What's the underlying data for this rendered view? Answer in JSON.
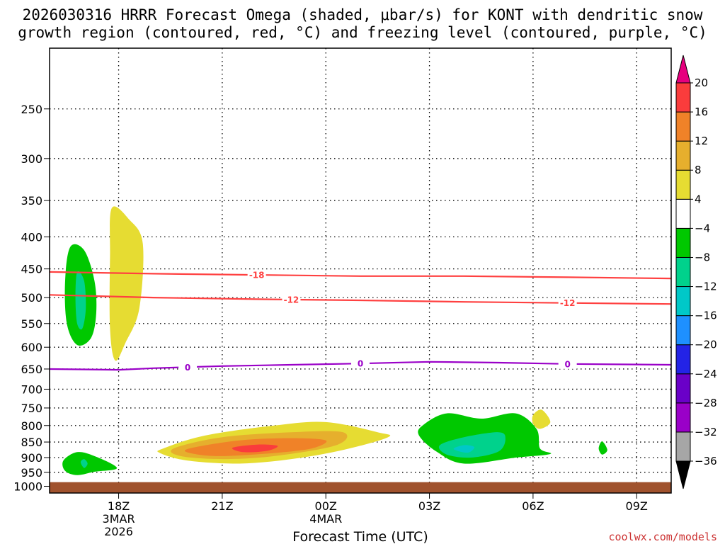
{
  "chart_data": {
    "type": "heatmap",
    "title_line1": "2026030316 HRRR Forecast Omega (shaded, μbar/s) for KONT with dendritic snow",
    "title_line2": "growth region (contoured, red, °C) and freezing level (contoured, purple, °C)",
    "xlabel": "Forecast Time (UTC)",
    "ylabel": "",
    "credit": "coolwx.com/models",
    "credit_color": "#cc3333",
    "x_ticks": [
      {
        "hours": 2,
        "lines": [
          "18Z",
          "3MAR",
          "2026"
        ]
      },
      {
        "hours": 5,
        "lines": [
          "21Z"
        ]
      },
      {
        "hours": 8,
        "lines": [
          "00Z",
          "4MAR"
        ]
      },
      {
        "hours": 11,
        "lines": [
          "03Z"
        ]
      },
      {
        "hours": 14,
        "lines": [
          "06Z"
        ]
      },
      {
        "hours": 17,
        "lines": [
          "09Z"
        ]
      }
    ],
    "x_range_hours": [
      0,
      18
    ],
    "y_ticks_hPa": [
      250,
      300,
      350,
      400,
      450,
      500,
      550,
      600,
      650,
      700,
      750,
      800,
      850,
      900,
      950,
      1000
    ],
    "y_range_hPa": [
      200,
      1025
    ],
    "y_scale": "log-pressure",
    "ground_hPa": 985,
    "ground_color": "#a0522d",
    "grid": "dotted",
    "colorbar": {
      "levels": [
        -36,
        -32,
        -28,
        -24,
        -20,
        -16,
        -12,
        -8,
        -4,
        4,
        8,
        12,
        16,
        20
      ],
      "colors": [
        "#a6a6a6",
        "#9a00c8",
        "#6a00c8",
        "#2323e6",
        "#1e90ff",
        "#00c8c8",
        "#00d28c",
        "#00c800",
        "#ffffff",
        "#e6dc32",
        "#e6af2d",
        "#f08228",
        "#fa3c3c",
        "#f00082"
      ],
      "under_color": "#000000",
      "over_color": "#e6007e"
    },
    "omega_regions": [
      {
        "level": -8,
        "color": "#00c800",
        "points": [
          [
            0.6,
            415
          ],
          [
            1.0,
            420
          ],
          [
            1.3,
            470
          ],
          [
            1.35,
            530
          ],
          [
            1.2,
            580
          ],
          [
            0.8,
            595
          ],
          [
            0.5,
            550
          ],
          [
            0.45,
            470
          ]
        ]
      },
      {
        "level": -12,
        "color": "#00d28c",
        "points": [
          [
            0.8,
            455
          ],
          [
            1.0,
            470
          ],
          [
            1.05,
            520
          ],
          [
            0.95,
            560
          ],
          [
            0.8,
            550
          ],
          [
            0.75,
            500
          ]
        ]
      },
      {
        "level": 4,
        "color": "#e6dc32",
        "points": [
          [
            1.8,
            360
          ],
          [
            2.3,
            375
          ],
          [
            2.7,
            410
          ],
          [
            2.6,
            520
          ],
          [
            2.2,
            590
          ],
          [
            1.9,
            630
          ],
          [
            1.75,
            560
          ],
          [
            1.75,
            430
          ]
        ]
      },
      {
        "level": -8,
        "color": "#00c800",
        "points": [
          [
            0.4,
            910
          ],
          [
            0.8,
            882
          ],
          [
            1.3,
            895
          ],
          [
            1.95,
            935
          ],
          [
            1.3,
            948
          ],
          [
            0.8,
            960
          ],
          [
            0.45,
            945
          ]
        ]
      },
      {
        "level": -12,
        "color": "#00d28c",
        "points": [
          [
            0.9,
            915
          ],
          [
            1.0,
            905
          ],
          [
            1.1,
            920
          ],
          [
            1.0,
            935
          ]
        ]
      },
      {
        "level": 4,
        "color": "#e6dc32",
        "points": [
          [
            3.3,
            870
          ],
          [
            4.5,
            830
          ],
          [
            6.5,
            800
          ],
          [
            8.0,
            790
          ],
          [
            9.5,
            820
          ],
          [
            9.8,
            835
          ],
          [
            8.5,
            875
          ],
          [
            7.0,
            905
          ],
          [
            5.5,
            920
          ],
          [
            4.0,
            910
          ],
          [
            3.2,
            885
          ]
        ]
      },
      {
        "level": 8,
        "color": "#e6af2d",
        "points": [
          [
            3.6,
            870
          ],
          [
            5.0,
            835
          ],
          [
            7.0,
            820
          ],
          [
            8.5,
            820
          ],
          [
            8.3,
            860
          ],
          [
            6.5,
            895
          ],
          [
            5.0,
            905
          ],
          [
            3.8,
            895
          ]
        ]
      },
      {
        "level": 12,
        "color": "#f08228",
        "points": [
          [
            4.0,
            872
          ],
          [
            5.5,
            845
          ],
          [
            7.0,
            838
          ],
          [
            8.0,
            845
          ],
          [
            7.6,
            870
          ],
          [
            6.5,
            885
          ],
          [
            5.0,
            895
          ],
          [
            4.2,
            888
          ]
        ]
      },
      {
        "level": 16,
        "color": "#fa3c3c",
        "points": [
          [
            5.3,
            868
          ],
          [
            6.0,
            858
          ],
          [
            6.6,
            862
          ],
          [
            6.3,
            878
          ],
          [
            5.6,
            882
          ]
        ]
      },
      {
        "level": -8,
        "color": "#00c800",
        "points": [
          [
            10.8,
            800
          ],
          [
            11.5,
            765
          ],
          [
            12.5,
            780
          ],
          [
            13.5,
            765
          ],
          [
            14.1,
            810
          ],
          [
            14.2,
            870
          ],
          [
            14.5,
            888
          ],
          [
            13.5,
            900
          ],
          [
            12.0,
            920
          ],
          [
            11.2,
            880
          ],
          [
            10.7,
            830
          ]
        ]
      },
      {
        "level": -12,
        "color": "#00d28c",
        "points": [
          [
            11.3,
            860
          ],
          [
            12.0,
            835
          ],
          [
            13.0,
            820
          ],
          [
            13.2,
            840
          ],
          [
            13.0,
            880
          ],
          [
            12.2,
            900
          ],
          [
            11.5,
            890
          ]
        ]
      },
      {
        "level": -16,
        "color": "#00c8c8",
        "points": [
          [
            11.7,
            872
          ],
          [
            12.0,
            860
          ],
          [
            12.3,
            866
          ],
          [
            12.1,
            884
          ]
        ]
      },
      {
        "level": 4,
        "color": "#e6dc32",
        "points": [
          [
            14.0,
            770
          ],
          [
            14.25,
            755
          ],
          [
            14.5,
            790
          ],
          [
            14.2,
            810
          ],
          [
            14.0,
            795
          ]
        ]
      },
      {
        "level": -8,
        "color": "#00c800",
        "points": [
          [
            15.9,
            870
          ],
          [
            16.0,
            848
          ],
          [
            16.15,
            875
          ],
          [
            16.0,
            890
          ]
        ]
      }
    ],
    "contours": [
      {
        "name": "-18",
        "color": "#ff4040",
        "labels": [
          6.0
        ],
        "points": [
          [
            0,
            455
          ],
          [
            3,
            458
          ],
          [
            6,
            460
          ],
          [
            9,
            462
          ],
          [
            12,
            462
          ],
          [
            15,
            464
          ],
          [
            18,
            466
          ]
        ]
      },
      {
        "name": "-12",
        "color": "#ff4040",
        "labels": [
          7.0,
          15.0
        ],
        "points": [
          [
            0,
            495
          ],
          [
            3,
            500
          ],
          [
            6,
            503
          ],
          [
            9,
            505
          ],
          [
            12,
            508
          ],
          [
            15,
            510
          ],
          [
            18,
            512
          ]
        ]
      },
      {
        "name": "0",
        "color": "#9a00c8",
        "labels": [
          4.0,
          9.0,
          15.0
        ],
        "points": [
          [
            0,
            650
          ],
          [
            2,
            652
          ],
          [
            3,
            648
          ],
          [
            5,
            643
          ],
          [
            7,
            640
          ],
          [
            9,
            637
          ],
          [
            11,
            633
          ],
          [
            13,
            635
          ],
          [
            15,
            638
          ],
          [
            18,
            640
          ]
        ]
      }
    ]
  }
}
